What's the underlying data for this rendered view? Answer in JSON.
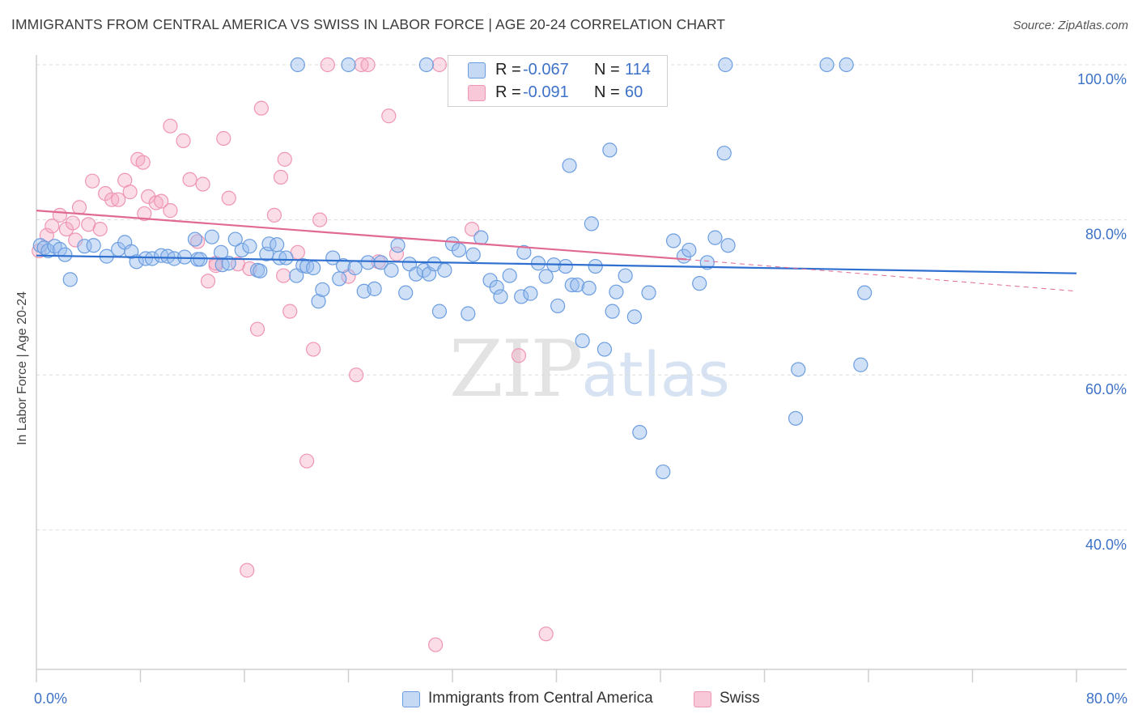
{
  "header": {
    "title": "IMMIGRANTS FROM CENTRAL AMERICA VS SWISS IN LABOR FORCE | AGE 20-24 CORRELATION CHART",
    "source": "Source: ZipAtlas.com"
  },
  "watermark": {
    "zip": "ZIP",
    "atlas": "atlas"
  },
  "legend": {
    "rows": [
      {
        "r_label": "R =",
        "r_value": "-0.067",
        "n_label": "N =",
        "n_value": "114"
      },
      {
        "r_label": "R =",
        "r_value": "-0.091",
        "n_label": "N =",
        "n_value": "60"
      }
    ]
  },
  "bottom_legend": {
    "blue": "Immigrants from Central America",
    "pink": "Swiss"
  },
  "chart_data": {
    "type": "scatter",
    "ylabel": "In Labor Force | Age 20-24",
    "xlim": [
      0,
      80
    ],
    "ylim": [
      20,
      100
    ],
    "x_tick_labels": [
      "0.0%",
      "80.0%"
    ],
    "y_ticks": [
      {
        "value": 100,
        "label": "100.0%"
      },
      {
        "value": 80,
        "label": "80.0%"
      },
      {
        "value": 60,
        "label": "60.0%"
      },
      {
        "value": 40,
        "label": "40.0%"
      }
    ],
    "grid": true,
    "colors": {
      "blue": "#6b9de0",
      "blue_line": "#2f6fcf",
      "pink": "#ef95b4",
      "pink_line": "#e06a92",
      "tick": "#3d72c7"
    },
    "series": [
      {
        "name": "Immigrants from Central America",
        "color": "blue",
        "trend": {
          "x": [
            0,
            80
          ],
          "y": [
            75.4,
            73.1
          ]
        },
        "points": [
          [
            0.3,
            76.7
          ],
          [
            0.6,
            76.4
          ],
          [
            0.9,
            76.0
          ],
          [
            1.4,
            76.6
          ],
          [
            1.8,
            76.2
          ],
          [
            2.2,
            75.5
          ],
          [
            2.6,
            72.3
          ],
          [
            3.7,
            76.6
          ],
          [
            4.4,
            76.7
          ],
          [
            5.4,
            75.3
          ],
          [
            6.3,
            76.2
          ],
          [
            6.8,
            77.1
          ],
          [
            7.3,
            75.9
          ],
          [
            7.7,
            74.6
          ],
          [
            8.4,
            75.0
          ],
          [
            8.9,
            75.0
          ],
          [
            9.6,
            75.4
          ],
          [
            10.1,
            75.3
          ],
          [
            10.6,
            75.0
          ],
          [
            11.4,
            75.2
          ],
          [
            12.2,
            77.5
          ],
          [
            12.4,
            74.9
          ],
          [
            12.6,
            74.9
          ],
          [
            13.5,
            77.8
          ],
          [
            14.2,
            75.8
          ],
          [
            14.3,
            74.2
          ],
          [
            14.8,
            74.4
          ],
          [
            15.3,
            77.5
          ],
          [
            15.8,
            76.1
          ],
          [
            16.4,
            76.6
          ],
          [
            17.0,
            73.5
          ],
          [
            17.2,
            73.4
          ],
          [
            17.7,
            75.6
          ],
          [
            17.9,
            76.9
          ],
          [
            18.5,
            76.8
          ],
          [
            18.7,
            75.1
          ],
          [
            19.2,
            75.1
          ],
          [
            20.0,
            72.8
          ],
          [
            20.5,
            74.1
          ],
          [
            20.8,
            74.0
          ],
          [
            21.3,
            73.8
          ],
          [
            21.7,
            69.5
          ],
          [
            22.0,
            71.0
          ],
          [
            22.8,
            75.1
          ],
          [
            23.3,
            72.4
          ],
          [
            23.6,
            74.1
          ],
          [
            24.5,
            73.8
          ],
          [
            25.2,
            70.8
          ],
          [
            25.5,
            74.5
          ],
          [
            26.0,
            71.1
          ],
          [
            26.5,
            74.5
          ],
          [
            27.3,
            73.5
          ],
          [
            27.8,
            76.7
          ],
          [
            28.4,
            70.6
          ],
          [
            28.7,
            74.3
          ],
          [
            29.2,
            73.0
          ],
          [
            29.8,
            73.5
          ],
          [
            30.2,
            73.0
          ],
          [
            30.6,
            74.3
          ],
          [
            31.0,
            68.2
          ],
          [
            31.4,
            73.5
          ],
          [
            32.0,
            76.9
          ],
          [
            32.5,
            76.1
          ],
          [
            33.2,
            67.9
          ],
          [
            33.6,
            75.5
          ],
          [
            34.2,
            77.7
          ],
          [
            34.9,
            72.2
          ],
          [
            35.4,
            71.3
          ],
          [
            35.7,
            70.1
          ],
          [
            36.4,
            72.8
          ],
          [
            37.3,
            70.1
          ],
          [
            37.5,
            75.8
          ],
          [
            38.0,
            70.5
          ],
          [
            38.6,
            74.4
          ],
          [
            39.2,
            72.7
          ],
          [
            39.8,
            74.2
          ],
          [
            40.1,
            68.9
          ],
          [
            40.7,
            74.0
          ],
          [
            41.2,
            71.6
          ],
          [
            41.6,
            71.6
          ],
          [
            42.0,
            64.4
          ],
          [
            42.5,
            71.2
          ],
          [
            42.7,
            79.5
          ],
          [
            43.0,
            74.0
          ],
          [
            43.7,
            63.3
          ],
          [
            44.3,
            68.2
          ],
          [
            44.6,
            70.7
          ],
          [
            45.3,
            72.8
          ],
          [
            46.0,
            67.5
          ],
          [
            46.4,
            52.6
          ],
          [
            47.1,
            70.6
          ],
          [
            48.2,
            47.5
          ],
          [
            49.0,
            77.3
          ],
          [
            49.8,
            75.3
          ],
          [
            50.2,
            76.1
          ],
          [
            51.0,
            71.8
          ],
          [
            51.6,
            74.5
          ],
          [
            52.2,
            77.7
          ],
          [
            52.9,
            88.6
          ],
          [
            53.2,
            76.7
          ],
          [
            58.4,
            54.4
          ],
          [
            58.6,
            60.7
          ],
          [
            63.4,
            61.3
          ],
          [
            63.7,
            70.6
          ],
          [
            60.8,
            100.0
          ],
          [
            62.3,
            100.0
          ],
          [
            44.1,
            89.0
          ],
          [
            41.0,
            87.0
          ],
          [
            47.4,
            100.0
          ],
          [
            47.8,
            100.0
          ],
          [
            53.0,
            101.0
          ],
          [
            20.1,
            101.2
          ],
          [
            24.0,
            101.0
          ],
          [
            30.0,
            101.0
          ]
        ]
      },
      {
        "name": "Swiss",
        "color": "pink",
        "trend": {
          "x": [
            0,
            50
          ],
          "y": [
            81.2,
            74.9
          ]
        },
        "trend_dashed": {
          "x": [
            50,
            80
          ],
          "y": [
            74.9,
            70.8
          ]
        },
        "points": [
          [
            0.2,
            76.0
          ],
          [
            0.8,
            78.0
          ],
          [
            1.2,
            79.2
          ],
          [
            1.8,
            80.6
          ],
          [
            2.3,
            78.8
          ],
          [
            2.8,
            79.6
          ],
          [
            3.3,
            81.6
          ],
          [
            4.0,
            79.4
          ],
          [
            4.3,
            85.0
          ],
          [
            4.9,
            78.8
          ],
          [
            5.3,
            83.4
          ],
          [
            5.8,
            82.6
          ],
          [
            6.3,
            82.6
          ],
          [
            6.8,
            85.1
          ],
          [
            7.2,
            83.6
          ],
          [
            7.8,
            87.8
          ],
          [
            8.2,
            87.4
          ],
          [
            8.6,
            83.0
          ],
          [
            9.2,
            82.2
          ],
          [
            9.6,
            82.4
          ],
          [
            10.3,
            81.2
          ],
          [
            10.3,
            92.1
          ],
          [
            11.3,
            90.2
          ],
          [
            11.8,
            85.2
          ],
          [
            12.4,
            77.2
          ],
          [
            12.8,
            84.6
          ],
          [
            13.2,
            72.1
          ],
          [
            13.8,
            74.1
          ],
          [
            14.4,
            90.5
          ],
          [
            14.8,
            82.8
          ],
          [
            15.5,
            74.3
          ],
          [
            16.4,
            73.7
          ],
          [
            17.0,
            65.9
          ],
          [
            17.3,
            94.4
          ],
          [
            18.3,
            80.6
          ],
          [
            18.8,
            85.5
          ],
          [
            19.1,
            87.8
          ],
          [
            19.5,
            68.2
          ],
          [
            20.1,
            75.8
          ],
          [
            21.3,
            63.3
          ],
          [
            21.8,
            80.0
          ],
          [
            22.4,
            100.0
          ],
          [
            24.0,
            72.7
          ],
          [
            24.6,
            60.0
          ],
          [
            25.0,
            100.0
          ],
          [
            25.5,
            100.0
          ],
          [
            26.3,
            74.6
          ],
          [
            27.1,
            93.4
          ],
          [
            27.7,
            75.6
          ],
          [
            30.7,
            25.2
          ],
          [
            31.0,
            100.0
          ],
          [
            33.5,
            78.8
          ],
          [
            37.1,
            62.5
          ],
          [
            39.2,
            26.6
          ],
          [
            20.8,
            48.9
          ],
          [
            16.2,
            34.8
          ],
          [
            13.8,
            74.4
          ],
          [
            19.0,
            72.8
          ],
          [
            8.3,
            80.8
          ],
          [
            3.0,
            77.4
          ]
        ]
      }
    ]
  }
}
